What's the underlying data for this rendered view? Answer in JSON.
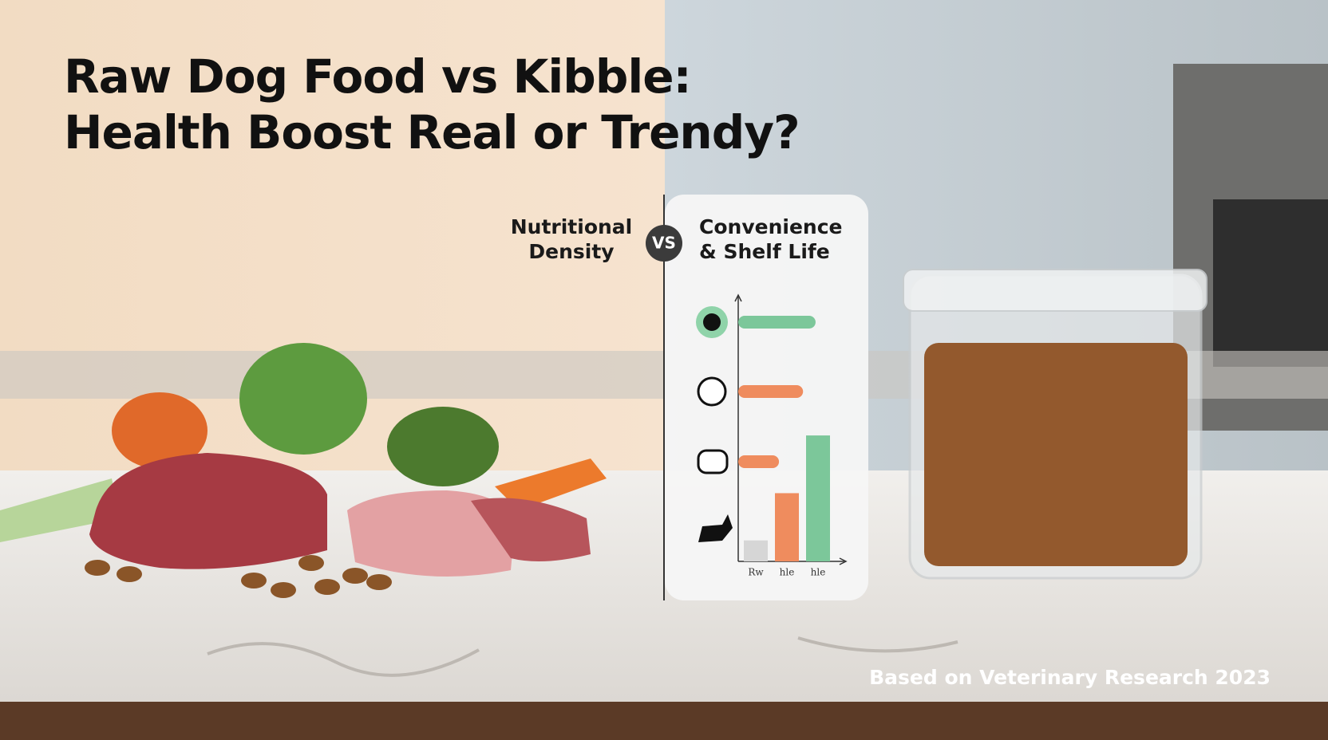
{
  "header": {
    "title_lines": [
      "Raw Dog Food vs Kibble:",
      "Health Boost Real or Trendy?"
    ]
  },
  "comparison": {
    "left_lines": [
      "Nutritional",
      "Density"
    ],
    "divider": "VS",
    "right_lines": [
      "Convenience",
      "& Shelf Life"
    ]
  },
  "chart_data": [
    {
      "type": "barh",
      "categories": [
        null,
        null,
        null
      ],
      "values": [
        74,
        62,
        39
      ],
      "colors": [
        "#7cc79a",
        "#ef8c5e",
        "#ef8c5e"
      ],
      "xlim": [
        0,
        100
      ]
    },
    {
      "type": "bar",
      "categories": [
        "Rw",
        "hle",
        "hle"
      ],
      "values": [
        8,
        26,
        48
      ],
      "colors": [
        "#d6d6d6",
        "#ef8c5e",
        "#7cc79a"
      ],
      "ylim": [
        0,
        100
      ]
    }
  ],
  "footer": "Based on Veterinary Research 2023"
}
